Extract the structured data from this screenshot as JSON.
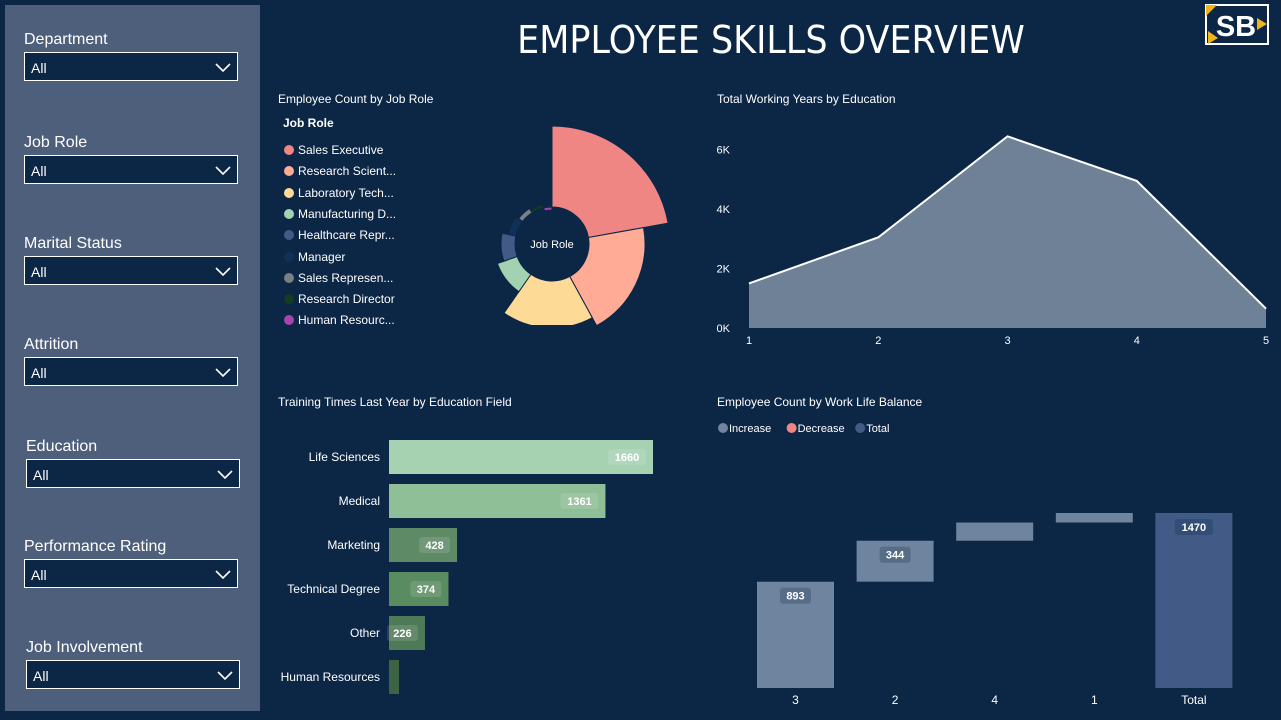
{
  "title": "EMPLOYEE SKILLS OVERVIEW",
  "logo_text": "SB",
  "filters": [
    {
      "label": "Department",
      "value": "All"
    },
    {
      "label": "Job Role",
      "value": "All"
    },
    {
      "label": "Marital Status",
      "value": "All"
    },
    {
      "label": "Attrition",
      "value": "All"
    },
    {
      "label": "Education",
      "value": "All"
    },
    {
      "label": "Performance Rating",
      "value": "All"
    },
    {
      "label": "Job Involvement",
      "value": "All"
    }
  ],
  "donut": {
    "title": "Employee Count by Job Role",
    "legend_title": "Job Role",
    "center_label": "Job Role",
    "legend": [
      {
        "label": "Sales Executive",
        "color": "#f08684"
      },
      {
        "label": "Research Scient...",
        "color": "#ffab95"
      },
      {
        "label": "Laboratory Tech...",
        "color": "#fddb97"
      },
      {
        "label": "Manufacturing D...",
        "color": "#a3d2b0"
      },
      {
        "label": "Healthcare Repr...",
        "color": "#415b86"
      },
      {
        "label": "Manager",
        "color": "#0f3158"
      },
      {
        "label": "Sales Represen...",
        "color": "#7b7e82"
      },
      {
        "label": "Research Director",
        "color": "#133c23"
      },
      {
        "label": "Human Resourc...",
        "color": "#a646ad"
      }
    ]
  },
  "chart_data": [
    {
      "type": "pie",
      "title": "Employee Count by Job Role",
      "legend_title": "Job Role",
      "categories": [
        "Sales Executive",
        "Research Scient...",
        "Laboratory Tech...",
        "Manufacturing D...",
        "Healthcare Repr...",
        "Manager",
        "Sales Represen...",
        "Research Director",
        "Human Resourc..."
      ],
      "values": [
        326,
        292,
        259,
        145,
        131,
        102,
        83,
        80,
        52
      ]
    },
    {
      "type": "area",
      "title": "Total Working Years by Education",
      "x": [
        1,
        2,
        3,
        4,
        5
      ],
      "values": [
        1500,
        3050,
        6450,
        4950,
        650
      ],
      "ylim": [
        0,
        7000
      ],
      "yticks": [
        "0K",
        "2K",
        "4K",
        "6K"
      ],
      "ytick_values": [
        0,
        2000,
        4000,
        6000
      ],
      "grid": false
    },
    {
      "type": "bar",
      "title": "Training Times Last Year by Education Field",
      "categories": [
        "Life Sciences",
        "Medical",
        "Marketing",
        "Technical Degree",
        "Other",
        "Human Resources"
      ],
      "values": [
        1660,
        1361,
        428,
        374,
        226,
        56
      ],
      "labels": [
        "1660",
        "1361",
        "428",
        "374",
        "226",
        ""
      ],
      "colors": [
        "#a6d2b2",
        "#8fbf96",
        "#5e8a66",
        "#5a8c62",
        "#4f7a57",
        "#3c6444"
      ]
    },
    {
      "type": "bar",
      "subtype": "waterfall",
      "title": "Employee Count by Work Life Balance",
      "legend": [
        {
          "name": "Increase",
          "color": "#6f849e"
        },
        {
          "name": "Decrease",
          "color": "#f08684"
        },
        {
          "name": "Total",
          "color": "#415b86"
        }
      ],
      "categories": [
        "3",
        "2",
        "4",
        "1",
        "Total"
      ],
      "values": [
        893,
        344,
        153,
        80,
        1470
      ],
      "labels": [
        "893",
        "344",
        "",
        "",
        "1470"
      ]
    }
  ]
}
